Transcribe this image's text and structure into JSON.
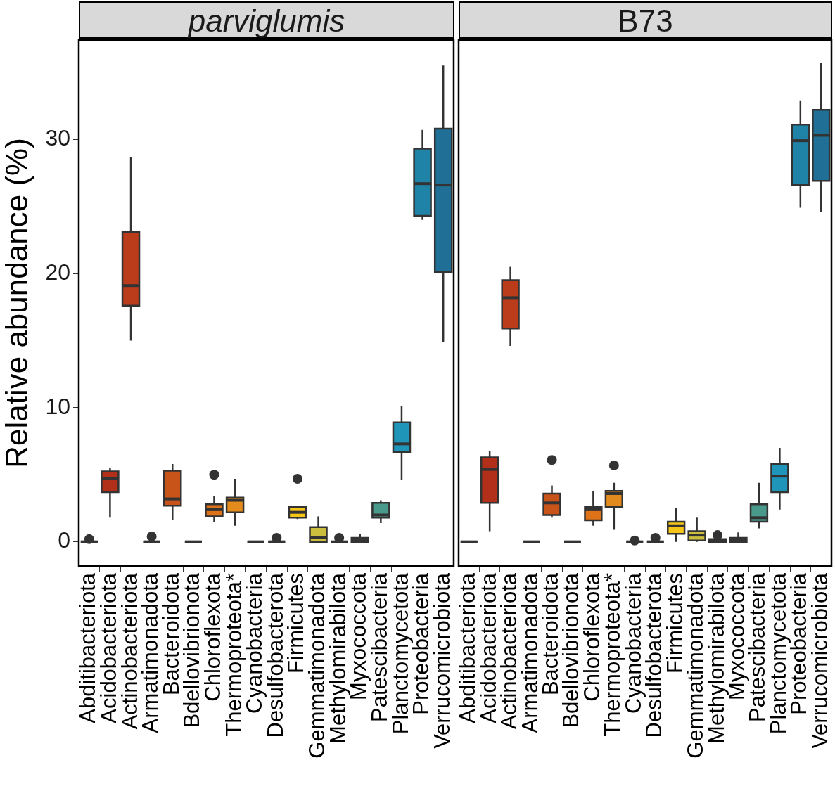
{
  "chart_data": [
    {
      "type": "box",
      "title": "parviglumis",
      "ylabel": "Relative abundance (%)",
      "ylim": [
        -1.8,
        37.4
      ],
      "yticks": [
        0,
        10,
        20,
        30
      ],
      "categories": [
        "Abditibacteriota",
        "Acidobacteriota",
        "Actinobacteriota",
        "Armatimonadota",
        "Bacteroidota",
        "Bdellovibrionota",
        "Chloroflexota",
        "Thermoproteota*",
        "Cyanobacteria",
        "Desulfobacterota",
        "Firmicutes",
        "Gemmatimonadota",
        "Methylomirabilota",
        "Myxococcota",
        "Patescibacteria",
        "Planctomycetota",
        "Proteobacteria",
        "Verrucomicrobiota"
      ],
      "colors": [
        "#333333",
        "#b2301a",
        "#bb3c1b",
        "#333333",
        "#c9541a",
        "#333333",
        "#de7219",
        "#e38c1d",
        "#333333",
        "#333333",
        "#f5c518",
        "#cbbd3d",
        "#333333",
        "#7fb07f",
        "#4a9a8c",
        "#1e95b9",
        "#1f83a8",
        "#206f96"
      ],
      "boxes": [
        {
          "low": 0,
          "q1": 0,
          "median": 0,
          "q3": 0,
          "high": 0,
          "outliers": [
            0.2
          ]
        },
        {
          "low": 1.8,
          "q1": 3.7,
          "median": 4.7,
          "q3": 5.25,
          "high": 5.5
        },
        {
          "low": 15.0,
          "q1": 17.6,
          "median": 19.1,
          "q3": 23.1,
          "high": 28.7
        },
        {
          "low": 0,
          "q1": 0,
          "median": 0,
          "q3": 0,
          "high": 0,
          "outliers": [
            0.4
          ]
        },
        {
          "low": 1.6,
          "q1": 2.7,
          "median": 3.2,
          "q3": 5.3,
          "high": 5.8
        },
        {
          "low": 0,
          "q1": 0,
          "median": 0,
          "q3": 0,
          "high": 0
        },
        {
          "low": 1.5,
          "q1": 1.9,
          "median": 2.4,
          "q3": 2.8,
          "high": 3.4,
          "outliers": [
            5.0
          ]
        },
        {
          "low": 1.2,
          "q1": 2.2,
          "median": 3.1,
          "q3": 3.3,
          "high": 4.7
        },
        {
          "low": 0,
          "q1": 0,
          "median": 0,
          "q3": 0,
          "high": 0
        },
        {
          "low": 0,
          "q1": 0,
          "median": 0,
          "q3": 0,
          "high": 0,
          "outliers": [
            0.3
          ]
        },
        {
          "low": 1.7,
          "q1": 1.8,
          "median": 2.2,
          "q3": 2.6,
          "high": 2.7,
          "outliers": [
            4.7
          ]
        },
        {
          "low": 0,
          "q1": 0,
          "median": 0.3,
          "q3": 1.1,
          "high": 1.9
        },
        {
          "low": 0,
          "q1": 0,
          "median": 0,
          "q3": 0,
          "high": 0,
          "outliers": [
            0.3
          ]
        },
        {
          "low": 0,
          "q1": 0,
          "median": 0.15,
          "q3": 0.3,
          "high": 0.6
        },
        {
          "low": 1.4,
          "q1": 1.8,
          "median": 2.0,
          "q3": 2.9,
          "high": 3.1
        },
        {
          "low": 4.6,
          "q1": 6.7,
          "median": 7.3,
          "q3": 8.9,
          "high": 10.1
        },
        {
          "low": 24.0,
          "q1": 24.3,
          "median": 26.7,
          "q3": 29.3,
          "high": 30.7
        },
        {
          "low": 14.9,
          "q1": 20.1,
          "median": 26.6,
          "q3": 30.8,
          "high": 35.5
        }
      ]
    },
    {
      "type": "box",
      "title": "B73",
      "ylim": [
        -1.8,
        37.4
      ],
      "yticks": [
        0,
        10,
        20,
        30
      ],
      "tick_labels": "x",
      "categories": [
        "Abditibacteriota",
        "Acidobacteriota",
        "Actinobacteriota",
        "Armatimonadota",
        "Bacteroidota",
        "Bdellovibrionota",
        "Chloroflexota",
        "Thermoproteota*",
        "Cyanobacteria",
        "Desulfobacterota",
        "Firmicutes",
        "Gemmatimonadota",
        "Methylomirabilota",
        "Myxococcota",
        "Patescibacteria",
        "Planctomycetota",
        "Proteobacteria",
        "Verrucomicrobiota"
      ],
      "colors": [
        "#333333",
        "#b2301a",
        "#bb3c1b",
        "#333333",
        "#c9541a",
        "#333333",
        "#de7219",
        "#e38c1d",
        "#333333",
        "#333333",
        "#f5c518",
        "#cbbd3d",
        "#333333",
        "#7fb07f",
        "#4a9a8c",
        "#1e95b9",
        "#1f83a8",
        "#206f96"
      ],
      "boxes": [
        {
          "low": 0,
          "q1": 0,
          "median": 0,
          "q3": 0,
          "high": 0
        },
        {
          "low": 0.8,
          "q1": 2.9,
          "median": 5.4,
          "q3": 6.3,
          "high": 6.8
        },
        {
          "low": 14.6,
          "q1": 15.9,
          "median": 18.2,
          "q3": 19.5,
          "high": 20.5
        },
        {
          "low": 0,
          "q1": 0,
          "median": 0,
          "q3": 0,
          "high": 0
        },
        {
          "low": 1.8,
          "q1": 2.0,
          "median": 2.9,
          "q3": 3.6,
          "high": 4.2,
          "outliers": [
            6.1
          ]
        },
        {
          "low": 0,
          "q1": 0,
          "median": 0,
          "q3": 0,
          "high": 0
        },
        {
          "low": 1.2,
          "q1": 1.6,
          "median": 2.4,
          "q3": 2.6,
          "high": 3.8
        },
        {
          "low": 0.9,
          "q1": 2.6,
          "median": 3.6,
          "q3": 3.8,
          "high": 4.4,
          "outliers": [
            5.7
          ]
        },
        {
          "low": 0,
          "q1": 0,
          "median": 0,
          "q3": 0,
          "high": 0,
          "outliers": [
            0.1
          ]
        },
        {
          "low": 0,
          "q1": 0,
          "median": 0,
          "q3": 0,
          "high": 0,
          "outliers": [
            0.3
          ]
        },
        {
          "low": 0,
          "q1": 0.6,
          "median": 1.2,
          "q3": 1.5,
          "high": 2.5
        },
        {
          "low": 0,
          "q1": 0.1,
          "median": 0.5,
          "q3": 0.8,
          "high": 1.8
        },
        {
          "low": 0,
          "q1": 0,
          "median": 0,
          "q3": 0.2,
          "high": 0.2,
          "outliers": [
            0.5
          ]
        },
        {
          "low": 0,
          "q1": 0,
          "median": 0.1,
          "q3": 0.3,
          "high": 0.7
        },
        {
          "low": 1.0,
          "q1": 1.5,
          "median": 1.8,
          "q3": 2.8,
          "high": 4.4
        },
        {
          "low": 2.4,
          "q1": 3.7,
          "median": 4.9,
          "q3": 5.8,
          "high": 7.0
        },
        {
          "low": 24.9,
          "q1": 26.6,
          "median": 29.9,
          "q3": 31.1,
          "high": 32.9
        },
        {
          "low": 24.6,
          "q1": 26.9,
          "median": 30.3,
          "q3": 32.2,
          "high": 35.7
        }
      ]
    }
  ]
}
